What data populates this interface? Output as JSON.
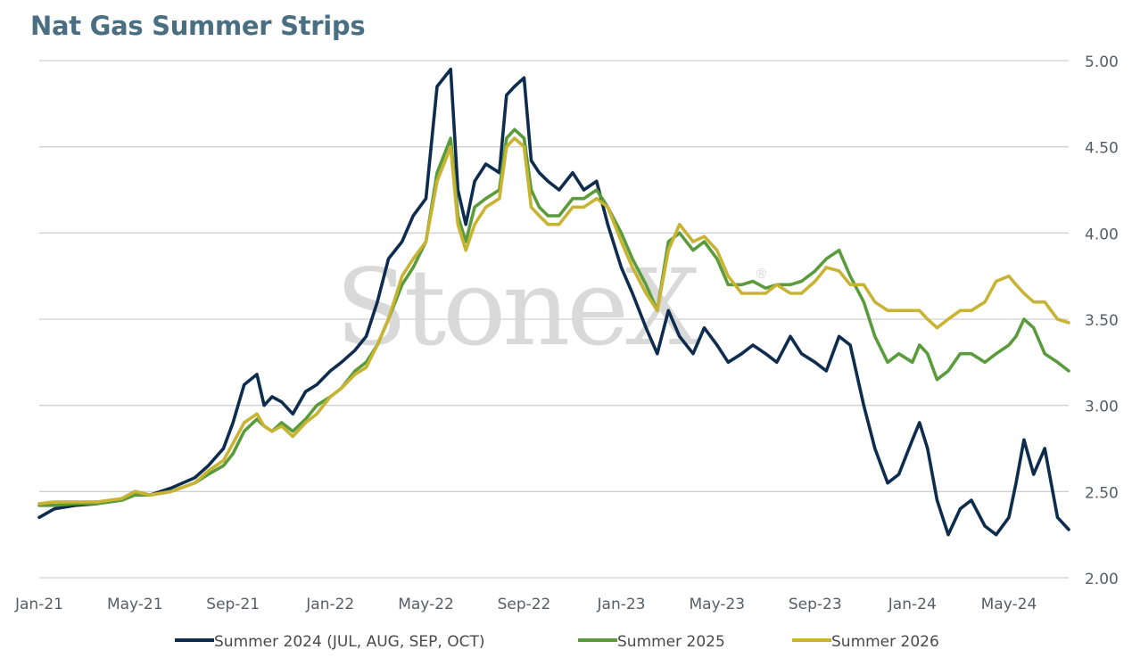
{
  "chart_data": {
    "type": "line",
    "title": "Nat Gas Summer Strips",
    "watermark": "StoneX",
    "y_ticks": [
      "2.00",
      "2.50",
      "3.00",
      "3.50",
      "4.00",
      "4.50",
      "5.00"
    ],
    "ylim": [
      2.0,
      5.0
    ],
    "x_ticks": [
      "Jan-21",
      "May-21",
      "Sep-21",
      "Jan-22",
      "May-22",
      "Sep-22",
      "Jan-23",
      "May-23",
      "Sep-23",
      "Jan-24",
      "May-24"
    ],
    "x_range": [
      "2021-01-01",
      "2024-07-15"
    ],
    "grid": true,
    "legend_position": "bottom",
    "x": [
      "2021-01-01",
      "2021-01-20",
      "2021-02-15",
      "2021-03-15",
      "2021-04-15",
      "2021-05-01",
      "2021-05-20",
      "2021-06-15",
      "2021-07-15",
      "2021-08-01",
      "2021-08-20",
      "2021-09-01",
      "2021-09-15",
      "2021-10-01",
      "2021-10-10",
      "2021-10-20",
      "2021-11-01",
      "2021-11-15",
      "2021-12-01",
      "2021-12-15",
      "2022-01-01",
      "2022-01-15",
      "2022-02-01",
      "2022-02-15",
      "2022-03-01",
      "2022-03-15",
      "2022-04-01",
      "2022-04-15",
      "2022-05-01",
      "2022-05-15",
      "2022-06-01",
      "2022-06-10",
      "2022-06-20",
      "2022-07-01",
      "2022-07-15",
      "2022-08-01",
      "2022-08-10",
      "2022-08-20",
      "2022-09-01",
      "2022-09-10",
      "2022-09-20",
      "2022-10-01",
      "2022-10-15",
      "2022-11-01",
      "2022-11-15",
      "2022-12-01",
      "2022-12-15",
      "2023-01-01",
      "2023-01-15",
      "2023-02-01",
      "2023-02-15",
      "2023-03-01",
      "2023-03-15",
      "2023-04-01",
      "2023-04-15",
      "2023-05-01",
      "2023-05-15",
      "2023-06-01",
      "2023-06-15",
      "2023-07-01",
      "2023-07-15",
      "2023-08-01",
      "2023-08-15",
      "2023-09-01",
      "2023-09-15",
      "2023-10-01",
      "2023-10-15",
      "2023-11-01",
      "2023-11-15",
      "2023-12-01",
      "2023-12-15",
      "2024-01-01",
      "2024-01-10",
      "2024-01-20",
      "2024-02-01",
      "2024-02-15",
      "2024-03-01",
      "2024-03-15",
      "2024-04-01",
      "2024-04-15",
      "2024-05-01",
      "2024-05-10",
      "2024-05-20",
      "2024-06-01",
      "2024-06-15",
      "2024-07-01",
      "2024-07-15"
    ],
    "series": [
      {
        "name": "Summer 2024 (JUL, AUG, SEP, OCT)",
        "color": "#0e2c4e",
        "values": [
          2.35,
          2.4,
          2.42,
          2.43,
          2.46,
          2.5,
          2.48,
          2.52,
          2.58,
          2.65,
          2.75,
          2.9,
          3.12,
          3.18,
          3.0,
          3.05,
          3.02,
          2.95,
          3.08,
          3.12,
          3.2,
          3.25,
          3.32,
          3.4,
          3.6,
          3.85,
          3.95,
          4.1,
          4.2,
          4.85,
          4.95,
          4.25,
          4.05,
          4.3,
          4.4,
          4.35,
          4.8,
          4.85,
          4.9,
          4.42,
          4.35,
          4.3,
          4.25,
          4.35,
          4.25,
          4.3,
          4.05,
          3.8,
          3.65,
          3.45,
          3.3,
          3.55,
          3.4,
          3.3,
          3.45,
          3.35,
          3.25,
          3.3,
          3.35,
          3.3,
          3.25,
          3.4,
          3.3,
          3.25,
          3.2,
          3.4,
          3.35,
          3.0,
          2.75,
          2.55,
          2.6,
          2.8,
          2.9,
          2.75,
          2.45,
          2.25,
          2.4,
          2.45,
          2.3,
          2.25,
          2.35,
          2.55,
          2.8,
          2.6,
          2.75,
          2.35,
          2.28
        ]
      },
      {
        "name": "Summer 2025",
        "color": "#5a9b3c",
        "values": [
          2.42,
          2.42,
          2.43,
          2.43,
          2.45,
          2.48,
          2.48,
          2.5,
          2.55,
          2.6,
          2.65,
          2.72,
          2.85,
          2.92,
          2.88,
          2.85,
          2.9,
          2.85,
          2.92,
          3.0,
          3.05,
          3.1,
          3.2,
          3.25,
          3.35,
          3.5,
          3.7,
          3.8,
          3.95,
          4.35,
          4.55,
          4.1,
          3.95,
          4.15,
          4.2,
          4.25,
          4.55,
          4.6,
          4.55,
          4.25,
          4.15,
          4.1,
          4.1,
          4.2,
          4.2,
          4.25,
          4.15,
          4.0,
          3.85,
          3.7,
          3.55,
          3.95,
          4.0,
          3.9,
          3.95,
          3.85,
          3.7,
          3.7,
          3.72,
          3.68,
          3.7,
          3.7,
          3.72,
          3.78,
          3.85,
          3.9,
          3.75,
          3.6,
          3.4,
          3.25,
          3.3,
          3.25,
          3.35,
          3.3,
          3.15,
          3.2,
          3.3,
          3.3,
          3.25,
          3.3,
          3.35,
          3.4,
          3.5,
          3.45,
          3.3,
          3.25,
          3.2
        ]
      },
      {
        "name": "Summer 2026",
        "color": "#c8b432",
        "values": [
          2.43,
          2.44,
          2.44,
          2.44,
          2.46,
          2.5,
          2.48,
          2.5,
          2.55,
          2.62,
          2.68,
          2.78,
          2.9,
          2.95,
          2.88,
          2.85,
          2.88,
          2.82,
          2.9,
          2.95,
          3.05,
          3.1,
          3.18,
          3.22,
          3.35,
          3.5,
          3.75,
          3.85,
          3.95,
          4.3,
          4.5,
          4.05,
          3.9,
          4.05,
          4.15,
          4.2,
          4.5,
          4.55,
          4.5,
          4.15,
          4.1,
          4.05,
          4.05,
          4.15,
          4.15,
          4.2,
          4.15,
          3.95,
          3.8,
          3.65,
          3.55,
          3.9,
          4.05,
          3.95,
          3.98,
          3.9,
          3.75,
          3.65,
          3.65,
          3.65,
          3.7,
          3.65,
          3.65,
          3.72,
          3.8,
          3.78,
          3.7,
          3.7,
          3.6,
          3.55,
          3.55,
          3.55,
          3.55,
          3.5,
          3.45,
          3.5,
          3.55,
          3.55,
          3.6,
          3.72,
          3.75,
          3.7,
          3.65,
          3.6,
          3.6,
          3.5,
          3.48
        ]
      }
    ]
  }
}
